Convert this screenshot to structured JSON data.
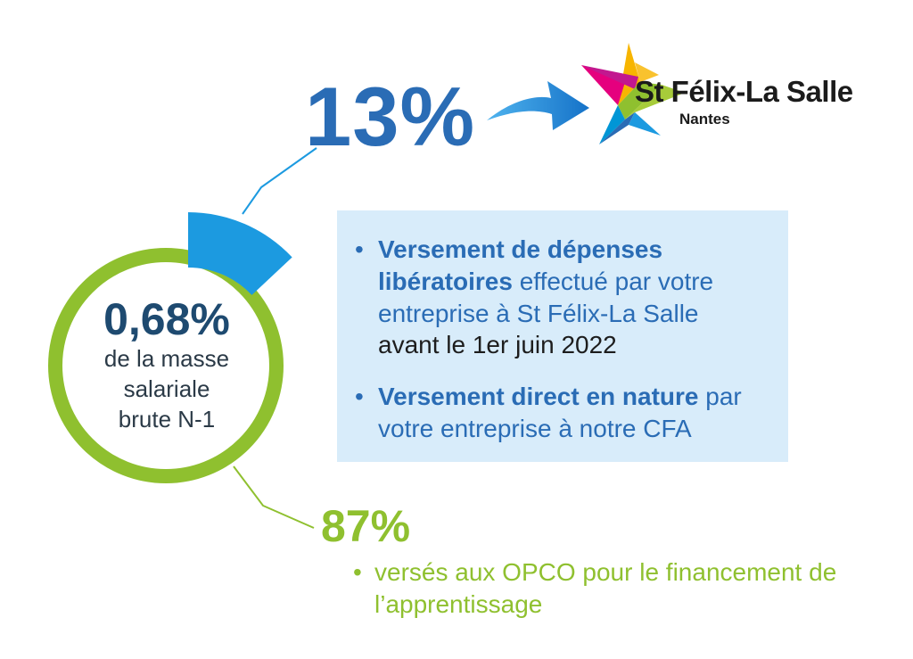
{
  "share_school": {
    "percent": "13%",
    "fraction": 0.13,
    "color": "#2a6cb5"
  },
  "share_opco": {
    "percent": "87%",
    "fraction": 0.87,
    "color": "#8fc02f",
    "items": [
      {
        "text": "versés aux OPCO pour le financement de l’apprentissage"
      }
    ]
  },
  "center": {
    "value": "0,68%",
    "label_line1": "de la masse",
    "label_line2": "salariale",
    "label_line3": "brute N-1"
  },
  "info_box": {
    "background": "#d8ecfa",
    "items": [
      {
        "bold": "Versement de dépenses libératoires",
        "text": " effectué par votre entreprise à St Félix-La Salle",
        "extra": "avant le 1er juin 2022"
      },
      {
        "bold": "Versement direct en nature",
        "text": " par votre entreprise à notre CFA",
        "extra": ""
      }
    ]
  },
  "logo": {
    "name": "St Félix-La Salle",
    "city": "Nantes",
    "icon": "star-logo-icon",
    "star_colors": [
      "#f7b500",
      "#e5007e",
      "#0096d6",
      "#8fc02f",
      "#2a6cb5"
    ]
  },
  "arrow": {
    "icon": "curved-arrow-icon",
    "color": "#1e88d8"
  }
}
